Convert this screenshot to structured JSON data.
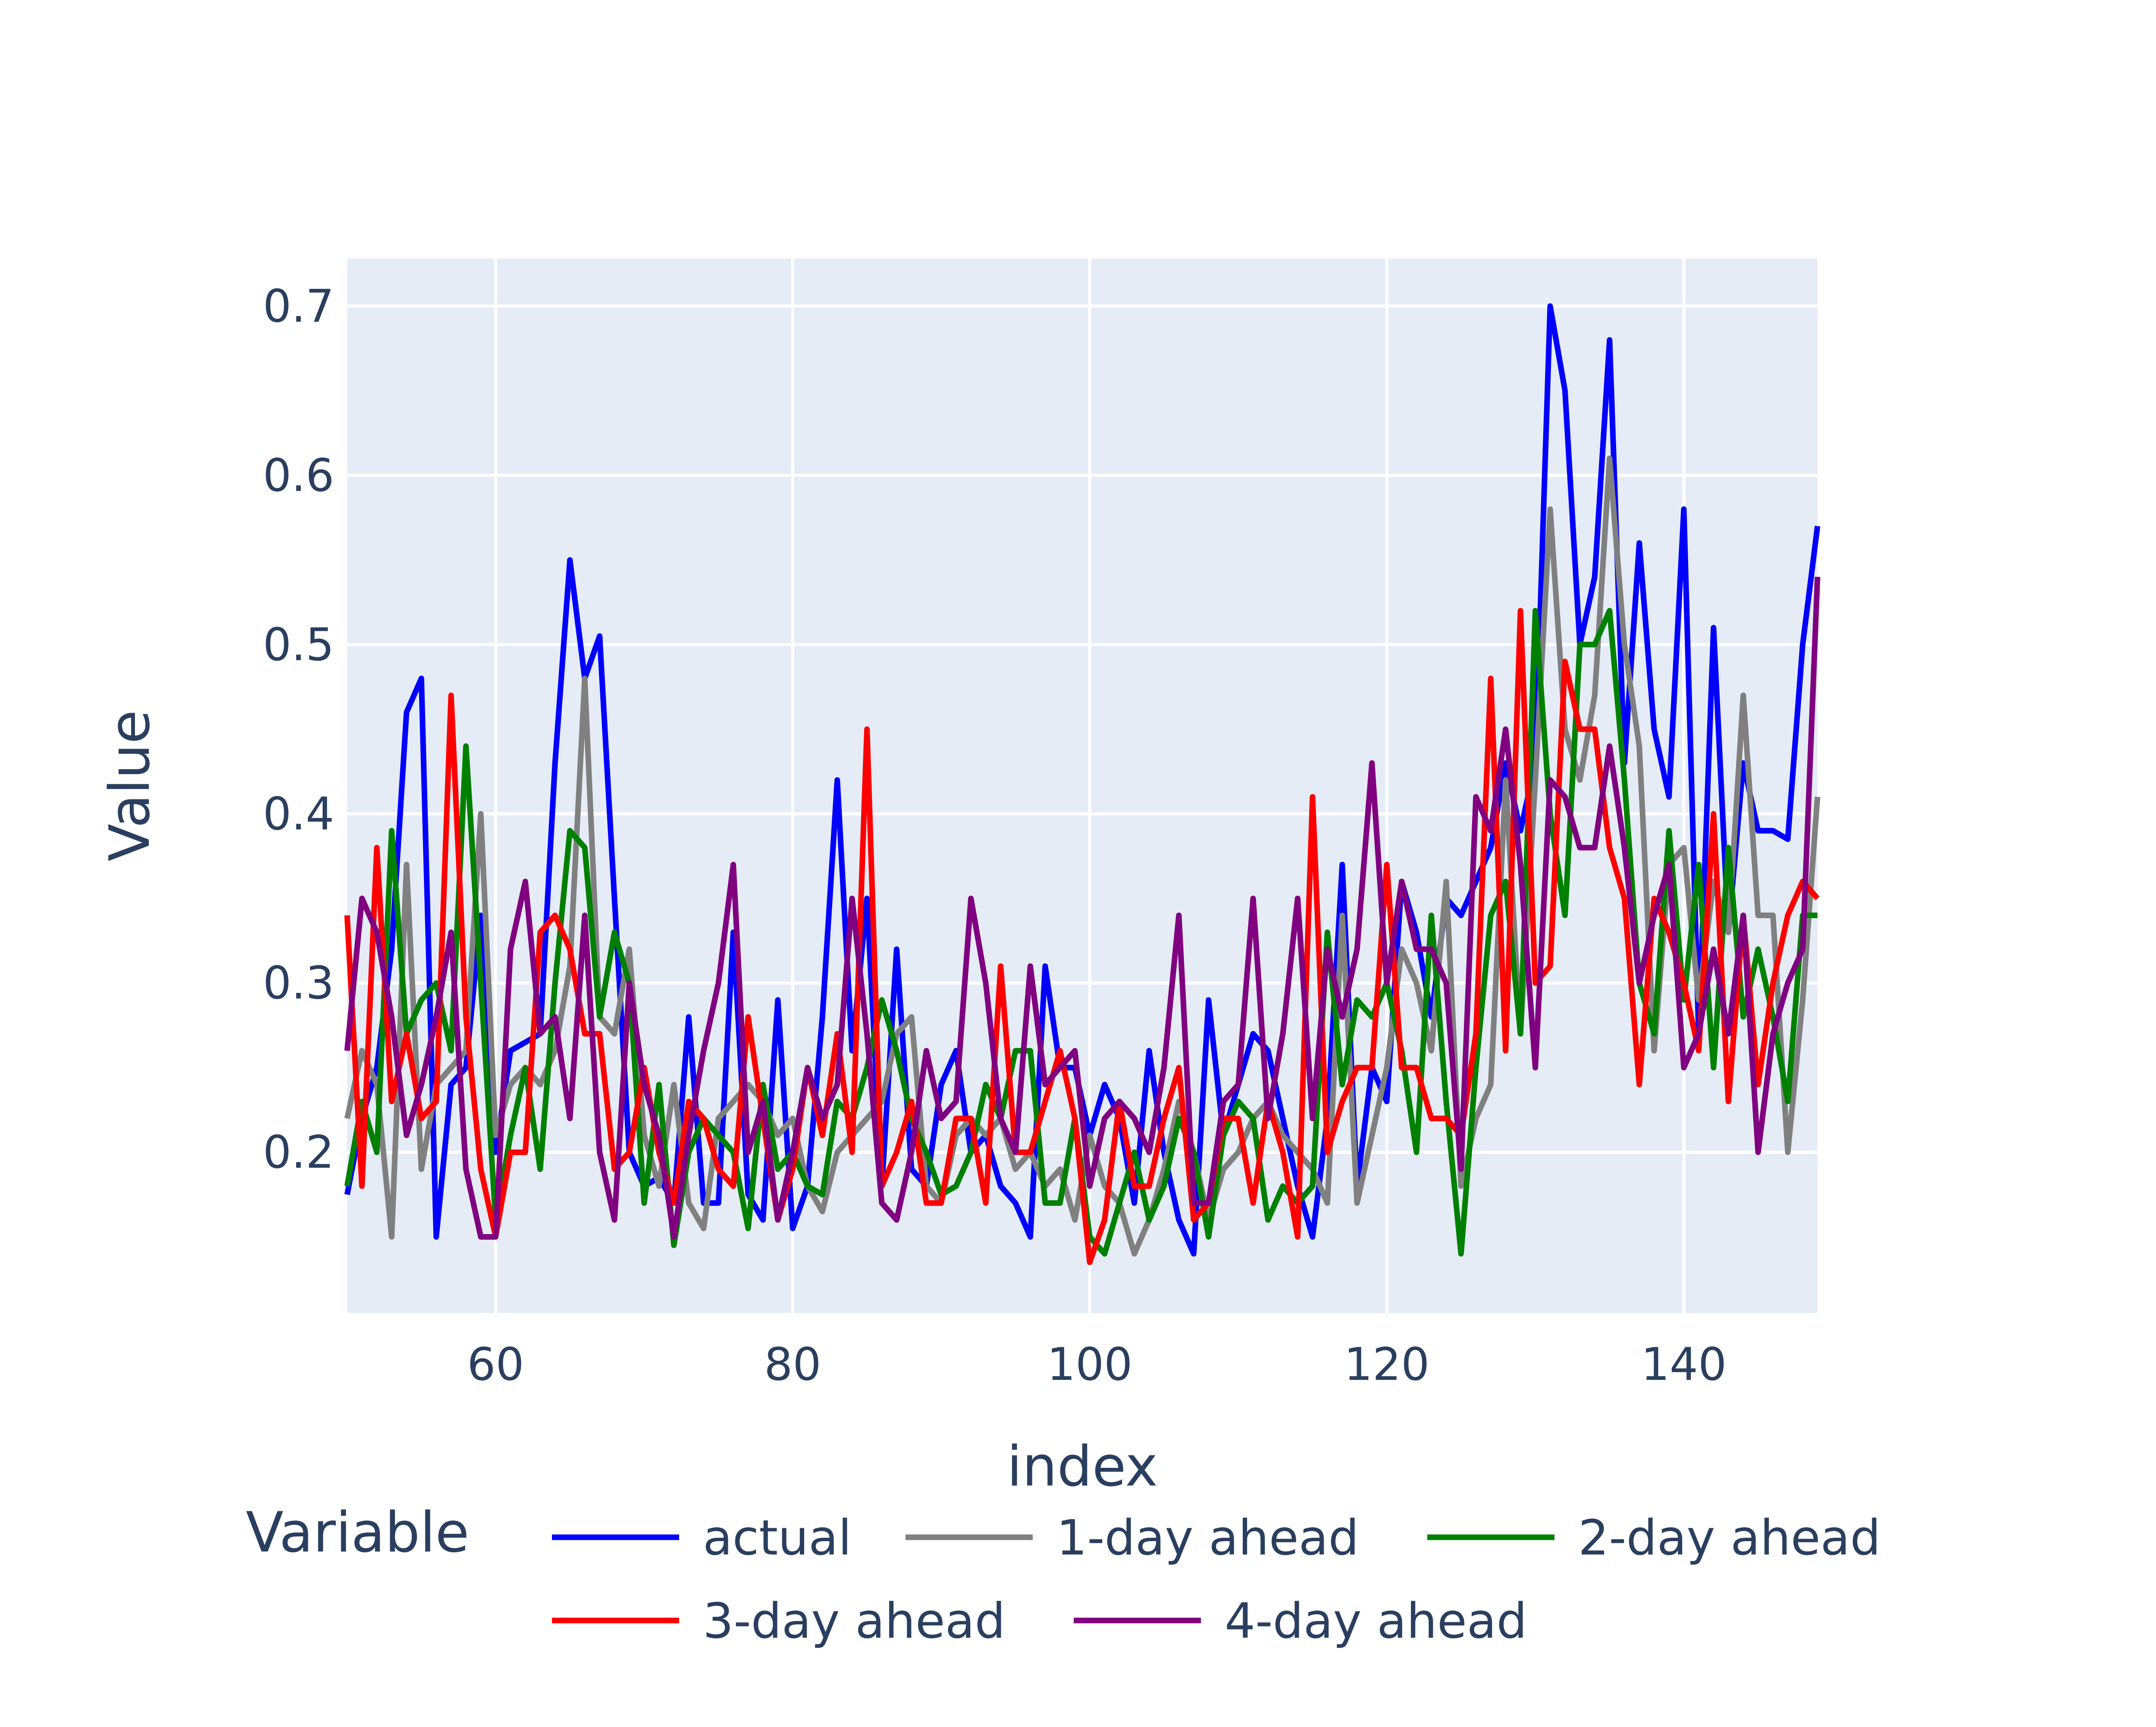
{
  "chart_data": {
    "type": "line",
    "xlabel": "index",
    "ylabel": "Value",
    "xlim": [
      50,
      149
    ],
    "ylim": [
      0.105,
      0.728
    ],
    "x_ticks": [
      60,
      80,
      100,
      120,
      140
    ],
    "y_ticks": [
      0.2,
      0.3,
      0.4,
      0.5,
      0.6,
      0.7
    ],
    "y_tick_labels": [
      "0.2",
      "0.3",
      "0.4",
      "0.5",
      "0.6",
      "0.7"
    ],
    "grid": true,
    "legend": {
      "title": "Variable",
      "position": "bottom"
    },
    "x": [
      50,
      51,
      52,
      53,
      54,
      55,
      56,
      57,
      58,
      59,
      60,
      61,
      62,
      63,
      64,
      65,
      66,
      67,
      68,
      69,
      70,
      71,
      72,
      73,
      74,
      75,
      76,
      77,
      78,
      79,
      80,
      81,
      82,
      83,
      84,
      85,
      86,
      87,
      88,
      89,
      90,
      91,
      92,
      93,
      94,
      95,
      96,
      97,
      98,
      99,
      100,
      101,
      102,
      103,
      104,
      105,
      106,
      107,
      108,
      109,
      110,
      111,
      112,
      113,
      114,
      115,
      116,
      117,
      118,
      119,
      120,
      121,
      122,
      123,
      124,
      125,
      126,
      127,
      128,
      129,
      130,
      131,
      132,
      133,
      134,
      135,
      136,
      137,
      138,
      139,
      140,
      141,
      142,
      143,
      144,
      145,
      146,
      147,
      148,
      149
    ],
    "series": [
      {
        "name": "actual",
        "color": "#0000ff",
        "values": [
          0.175,
          0.22,
          0.25,
          0.32,
          0.46,
          0.48,
          0.15,
          0.24,
          0.25,
          0.34,
          0.2,
          0.26,
          0.265,
          0.27,
          0.43,
          0.55,
          0.48,
          0.505,
          0.35,
          0.2,
          0.18,
          0.185,
          0.17,
          0.28,
          0.17,
          0.17,
          0.33,
          0.175,
          0.16,
          0.29,
          0.155,
          0.18,
          0.28,
          0.42,
          0.26,
          0.35,
          0.18,
          0.32,
          0.19,
          0.18,
          0.24,
          0.26,
          0.2,
          0.21,
          0.18,
          0.17,
          0.15,
          0.31,
          0.25,
          0.25,
          0.21,
          0.24,
          0.22,
          0.17,
          0.26,
          0.2,
          0.16,
          0.14,
          0.29,
          0.21,
          0.24,
          0.27,
          0.26,
          0.22,
          0.18,
          0.15,
          0.22,
          0.37,
          0.18,
          0.25,
          0.23,
          0.36,
          0.33,
          0.28,
          0.35,
          0.34,
          0.36,
          0.38,
          0.43,
          0.39,
          0.43,
          0.7,
          0.65,
          0.5,
          0.54,
          0.68,
          0.43,
          0.56,
          0.45,
          0.41,
          0.58,
          0.27,
          0.51,
          0.33,
          0.43,
          0.39,
          0.39,
          0.385,
          0.5,
          0.57
        ]
      },
      {
        "name": "1-day ahead",
        "color": "#808080",
        "values": [
          0.22,
          0.26,
          0.24,
          0.15,
          0.37,
          0.19,
          0.24,
          0.25,
          0.26,
          0.4,
          0.21,
          0.24,
          0.25,
          0.24,
          0.26,
          0.31,
          0.48,
          0.28,
          0.27,
          0.32,
          0.21,
          0.18,
          0.24,
          0.17,
          0.155,
          0.22,
          0.23,
          0.24,
          0.23,
          0.21,
          0.22,
          0.18,
          0.165,
          0.2,
          0.21,
          0.22,
          0.23,
          0.27,
          0.28,
          0.18,
          0.17,
          0.21,
          0.22,
          0.21,
          0.22,
          0.19,
          0.2,
          0.18,
          0.19,
          0.16,
          0.21,
          0.18,
          0.17,
          0.14,
          0.16,
          0.19,
          0.23,
          0.2,
          0.16,
          0.19,
          0.2,
          0.22,
          0.23,
          0.21,
          0.2,
          0.19,
          0.17,
          0.34,
          0.17,
          0.21,
          0.25,
          0.32,
          0.3,
          0.26,
          0.36,
          0.18,
          0.22,
          0.24,
          0.42,
          0.27,
          0.42,
          0.58,
          0.45,
          0.42,
          0.47,
          0.61,
          0.5,
          0.44,
          0.26,
          0.37,
          0.38,
          0.29,
          0.36,
          0.33,
          0.47,
          0.34,
          0.34,
          0.2,
          0.29,
          0.41
        ]
      },
      {
        "name": "2-day ahead",
        "color": "#008000",
        "values": [
          0.18,
          0.23,
          0.2,
          0.39,
          0.27,
          0.29,
          0.3,
          0.26,
          0.44,
          0.3,
          0.16,
          0.21,
          0.25,
          0.19,
          0.3,
          0.39,
          0.38,
          0.28,
          0.33,
          0.3,
          0.17,
          0.24,
          0.145,
          0.2,
          0.22,
          0.21,
          0.2,
          0.155,
          0.24,
          0.19,
          0.2,
          0.18,
          0.175,
          0.23,
          0.22,
          0.25,
          0.29,
          0.26,
          0.22,
          0.2,
          0.175,
          0.18,
          0.2,
          0.24,
          0.22,
          0.26,
          0.26,
          0.17,
          0.17,
          0.22,
          0.15,
          0.14,
          0.17,
          0.2,
          0.16,
          0.18,
          0.22,
          0.2,
          0.15,
          0.21,
          0.23,
          0.22,
          0.16,
          0.18,
          0.17,
          0.18,
          0.33,
          0.24,
          0.29,
          0.28,
          0.3,
          0.26,
          0.2,
          0.34,
          0.23,
          0.14,
          0.25,
          0.34,
          0.36,
          0.27,
          0.52,
          0.4,
          0.34,
          0.5,
          0.5,
          0.52,
          0.42,
          0.3,
          0.27,
          0.39,
          0.29,
          0.37,
          0.25,
          0.38,
          0.28,
          0.32,
          0.28,
          0.23,
          0.34,
          0.34
        ]
      },
      {
        "name": "3-day ahead",
        "color": "#ff0000",
        "values": [
          0.34,
          0.18,
          0.38,
          0.23,
          0.27,
          0.22,
          0.23,
          0.47,
          0.28,
          0.19,
          0.15,
          0.2,
          0.2,
          0.33,
          0.34,
          0.32,
          0.27,
          0.27,
          0.19,
          0.2,
          0.25,
          0.2,
          0.17,
          0.23,
          0.22,
          0.19,
          0.18,
          0.28,
          0.22,
          0.16,
          0.19,
          0.25,
          0.21,
          0.27,
          0.2,
          0.45,
          0.18,
          0.2,
          0.23,
          0.17,
          0.17,
          0.22,
          0.22,
          0.17,
          0.31,
          0.2,
          0.2,
          0.23,
          0.26,
          0.22,
          0.135,
          0.16,
          0.23,
          0.18,
          0.18,
          0.22,
          0.25,
          0.16,
          0.17,
          0.22,
          0.22,
          0.17,
          0.23,
          0.2,
          0.15,
          0.41,
          0.2,
          0.23,
          0.25,
          0.25,
          0.37,
          0.25,
          0.25,
          0.22,
          0.22,
          0.21,
          0.27,
          0.48,
          0.26,
          0.52,
          0.3,
          0.31,
          0.49,
          0.45,
          0.45,
          0.38,
          0.35,
          0.24,
          0.35,
          0.33,
          0.3,
          0.26,
          0.4,
          0.23,
          0.34,
          0.24,
          0.3,
          0.34,
          0.36,
          0.35
        ]
      },
      {
        "name": "4-day ahead",
        "color": "#800080",
        "values": [
          0.26,
          0.35,
          0.33,
          0.28,
          0.21,
          0.24,
          0.28,
          0.33,
          0.19,
          0.15,
          0.15,
          0.32,
          0.36,
          0.27,
          0.28,
          0.22,
          0.34,
          0.2,
          0.16,
          0.3,
          0.24,
          0.21,
          0.15,
          0.21,
          0.26,
          0.3,
          0.37,
          0.2,
          0.23,
          0.16,
          0.2,
          0.25,
          0.22,
          0.24,
          0.35,
          0.27,
          0.17,
          0.16,
          0.2,
          0.26,
          0.22,
          0.23,
          0.35,
          0.3,
          0.22,
          0.2,
          0.31,
          0.24,
          0.25,
          0.26,
          0.18,
          0.22,
          0.23,
          0.22,
          0.2,
          0.25,
          0.34,
          0.17,
          0.17,
          0.23,
          0.24,
          0.35,
          0.22,
          0.27,
          0.35,
          0.22,
          0.32,
          0.28,
          0.32,
          0.43,
          0.3,
          0.36,
          0.32,
          0.32,
          0.3,
          0.19,
          0.41,
          0.39,
          0.45,
          0.37,
          0.25,
          0.42,
          0.41,
          0.38,
          0.38,
          0.44,
          0.38,
          0.3,
          0.34,
          0.37,
          0.25,
          0.27,
          0.32,
          0.27,
          0.34,
          0.2,
          0.27,
          0.3,
          0.32,
          0.54
        ]
      }
    ]
  }
}
